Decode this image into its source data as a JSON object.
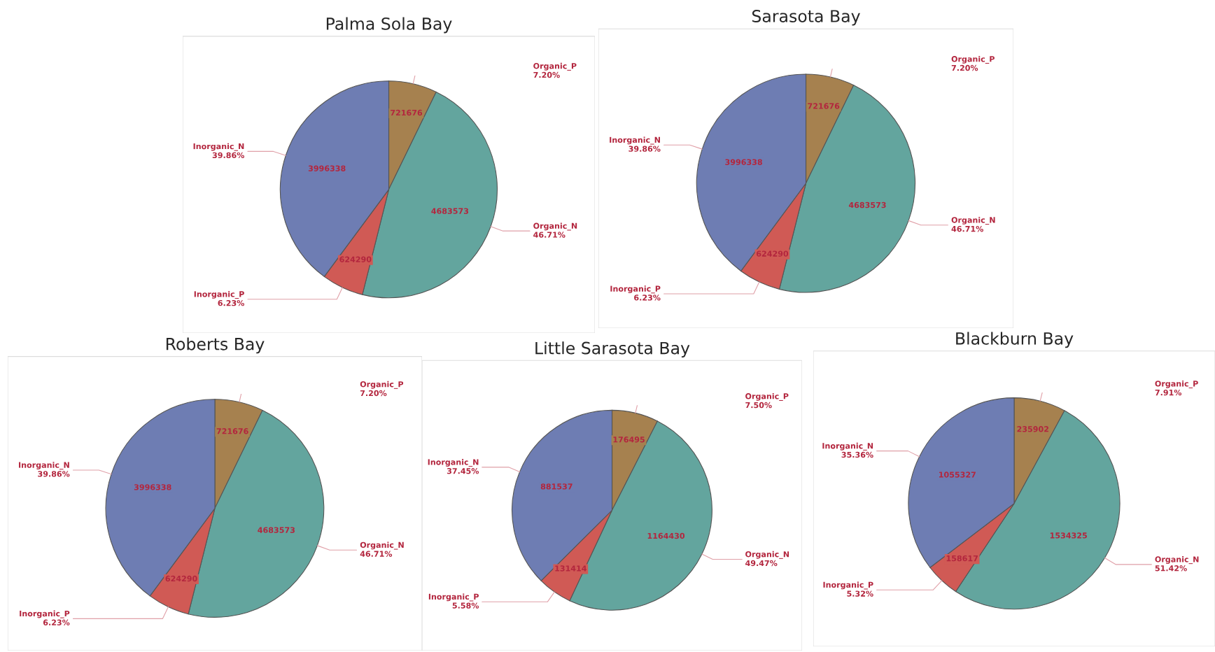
{
  "chart_data": [
    {
      "type": "pie",
      "title": "Palma Sola Bay",
      "categories": [
        "Organic_P",
        "Organic_N",
        "Inorganic_P",
        "Inorganic_N"
      ],
      "values": [
        721676,
        4683573,
        624290,
        3996338
      ],
      "colors": [
        "#a6814f",
        "#63a59e",
        "#d05a55",
        "#6e7db3"
      ],
      "data_labels": true,
      "annotations": [
        {
          "text": "7.20%",
          "x": "Organic_P"
        },
        {
          "text": "46.71%",
          "x": "Organic_N"
        },
        {
          "text": "6.23%",
          "x": "Inorganic_P"
        },
        {
          "text": "39.86%",
          "x": "Inorganic_N"
        }
      ]
    },
    {
      "type": "pie",
      "title": "Sarasota Bay",
      "categories": [
        "Organic_P",
        "Organic_N",
        "Inorganic_P",
        "Inorganic_N"
      ],
      "values": [
        721676,
        4683573,
        624290,
        3996338
      ],
      "colors": [
        "#a6814f",
        "#63a59e",
        "#d05a55",
        "#6e7db3"
      ],
      "data_labels": true,
      "annotations": [
        {
          "text": "7.20%",
          "x": "Organic_P"
        },
        {
          "text": "46.71%",
          "x": "Organic_N"
        },
        {
          "text": "6.23%",
          "x": "Inorganic_P"
        },
        {
          "text": "39.86%",
          "x": "Inorganic_N"
        }
      ]
    },
    {
      "type": "pie",
      "title": "Roberts Bay",
      "categories": [
        "Organic_P",
        "Organic_N",
        "Inorganic_P",
        "Inorganic_N"
      ],
      "values": [
        721676,
        4683573,
        624290,
        3996338
      ],
      "colors": [
        "#a6814f",
        "#63a59e",
        "#d05a55",
        "#6e7db3"
      ],
      "data_labels": true,
      "annotations": [
        {
          "text": "7.20%",
          "x": "Organic_P"
        },
        {
          "text": "46.71%",
          "x": "Organic_N"
        },
        {
          "text": "6.23%",
          "x": "Inorganic_P"
        },
        {
          "text": "39.86%",
          "x": "Inorganic_N"
        }
      ]
    },
    {
      "type": "pie",
      "title": "Little Sarasota Bay",
      "categories": [
        "Organic_P",
        "Organic_N",
        "Inorganic_P",
        "Inorganic_N"
      ],
      "values": [
        176495,
        1164430,
        131414,
        881537
      ],
      "colors": [
        "#a6814f",
        "#63a59e",
        "#d05a55",
        "#6e7db3"
      ],
      "data_labels": true,
      "annotations": [
        {
          "text": "7.50%",
          "x": "Organic_P"
        },
        {
          "text": "49.47%",
          "x": "Organic_N"
        },
        {
          "text": "5.58%",
          "x": "Inorganic_P"
        },
        {
          "text": "37.45%",
          "x": "Inorganic_N"
        }
      ]
    },
    {
      "type": "pie",
      "title": "Blackburn Bay",
      "categories": [
        "Organic_P",
        "Organic_N",
        "Inorganic_P",
        "Inorganic_N"
      ],
      "values": [
        235902,
        1534325,
        158617,
        1055327
      ],
      "colors": [
        "#a6814f",
        "#63a59e",
        "#d05a55",
        "#6e7db3"
      ],
      "data_labels": true,
      "annotations": [
        {
          "text": "7.91%",
          "x": "Organic_P"
        },
        {
          "text": "51.42%",
          "x": "Organic_N"
        },
        {
          "text": "5.32%",
          "x": "Inorganic_P"
        },
        {
          "text": "35.36%",
          "x": "Inorganic_N"
        }
      ]
    }
  ]
}
